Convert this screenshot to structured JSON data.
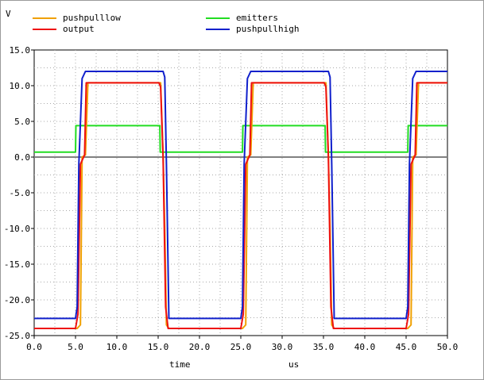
{
  "unit_label": "V",
  "legend": [
    {
      "name": "pushpulllow",
      "color": "#f0a000"
    },
    {
      "name": "emitters",
      "color": "#22dd22"
    },
    {
      "name": "output",
      "color": "#ee1111"
    },
    {
      "name": "pushpullhigh",
      "color": "#1020cc"
    }
  ],
  "axis": {
    "xlabel": "time",
    "xunit": "us",
    "yticks": [
      "15.0",
      "10.0",
      "5.0",
      "0.0",
      "-5.0",
      "-10.0",
      "-15.0",
      "-20.0",
      "-25.0"
    ],
    "xticks": [
      "0.0",
      "5.0",
      "10.0",
      "15.0",
      "20.0",
      "25.0",
      "30.0",
      "35.0",
      "40.0",
      "45.0",
      "50.0"
    ]
  },
  "chart_data": {
    "type": "line",
    "xlabel": "time",
    "ylabel": "V",
    "xlim": [
      0,
      50
    ],
    "ylim": [
      -25,
      15
    ],
    "grid": true,
    "series": [
      {
        "name": "emitters",
        "color": "#22dd22",
        "x": [
          0,
          5,
          5.05,
          15.2,
          15.25,
          25.2,
          25.25,
          35.2,
          35.25,
          45.2,
          45.25,
          50
        ],
        "y": [
          0.7,
          0.7,
          4.4,
          4.4,
          0.7,
          0.7,
          4.4,
          4.4,
          0.7,
          0.7,
          4.4,
          4.4
        ]
      },
      {
        "name": "pushpulllow",
        "color": "#f0a000",
        "x": [
          0,
          5.2,
          5.6,
          5.8,
          6.2,
          6.5,
          15.3,
          15.6,
          15.8,
          16.0,
          16.3,
          25.2,
          25.6,
          25.8,
          26.2,
          26.5,
          35.3,
          35.6,
          35.8,
          36.0,
          36.3,
          45.2,
          45.6,
          45.8,
          46.2,
          46.5,
          50
        ],
        "y": [
          -24,
          -24,
          -23.5,
          0,
          0.3,
          10.4,
          10.4,
          0.3,
          -10,
          -23.5,
          -24,
          -24,
          -23.5,
          0,
          0.3,
          10.4,
          10.4,
          0.3,
          -10,
          -23.5,
          -24,
          -24,
          -23.5,
          0,
          0.3,
          10.4,
          10.4
        ]
      },
      {
        "name": "output",
        "color": "#ee1111",
        "x": [
          0,
          5.0,
          5.3,
          5.6,
          6.1,
          6.3,
          15.1,
          15.3,
          15.6,
          15.9,
          16.2,
          25.0,
          25.3,
          25.6,
          26.1,
          26.3,
          35.1,
          35.3,
          35.6,
          35.9,
          36.2,
          45.0,
          45.3,
          45.6,
          46.1,
          46.3,
          50
        ],
        "y": [
          -24,
          -24,
          -22,
          -1,
          0.3,
          10.4,
          10.4,
          9.8,
          0,
          -21,
          -24,
          -24,
          -22,
          -1,
          0.3,
          10.4,
          10.4,
          9.8,
          0,
          -21,
          -24,
          -24,
          -22,
          -1,
          0.3,
          10.4,
          10.4
        ]
      },
      {
        "name": "pushpullhigh",
        "color": "#1020cc",
        "x": [
          0,
          5.0,
          5.2,
          5.4,
          5.8,
          6.2,
          15.6,
          15.8,
          16.0,
          16.3,
          25.0,
          25.2,
          25.4,
          25.8,
          26.2,
          35.6,
          35.8,
          36.0,
          36.3,
          45.0,
          45.2,
          45.4,
          45.8,
          46.2,
          50
        ],
        "y": [
          -22.6,
          -22.6,
          -21,
          -1,
          11.0,
          12.0,
          12.0,
          11.2,
          -1,
          -22.6,
          -22.6,
          -21,
          -1,
          11.0,
          12.0,
          12.0,
          11.2,
          -1,
          -22.6,
          -22.6,
          -21,
          -1,
          11.0,
          12.0,
          12.0
        ]
      }
    ]
  }
}
